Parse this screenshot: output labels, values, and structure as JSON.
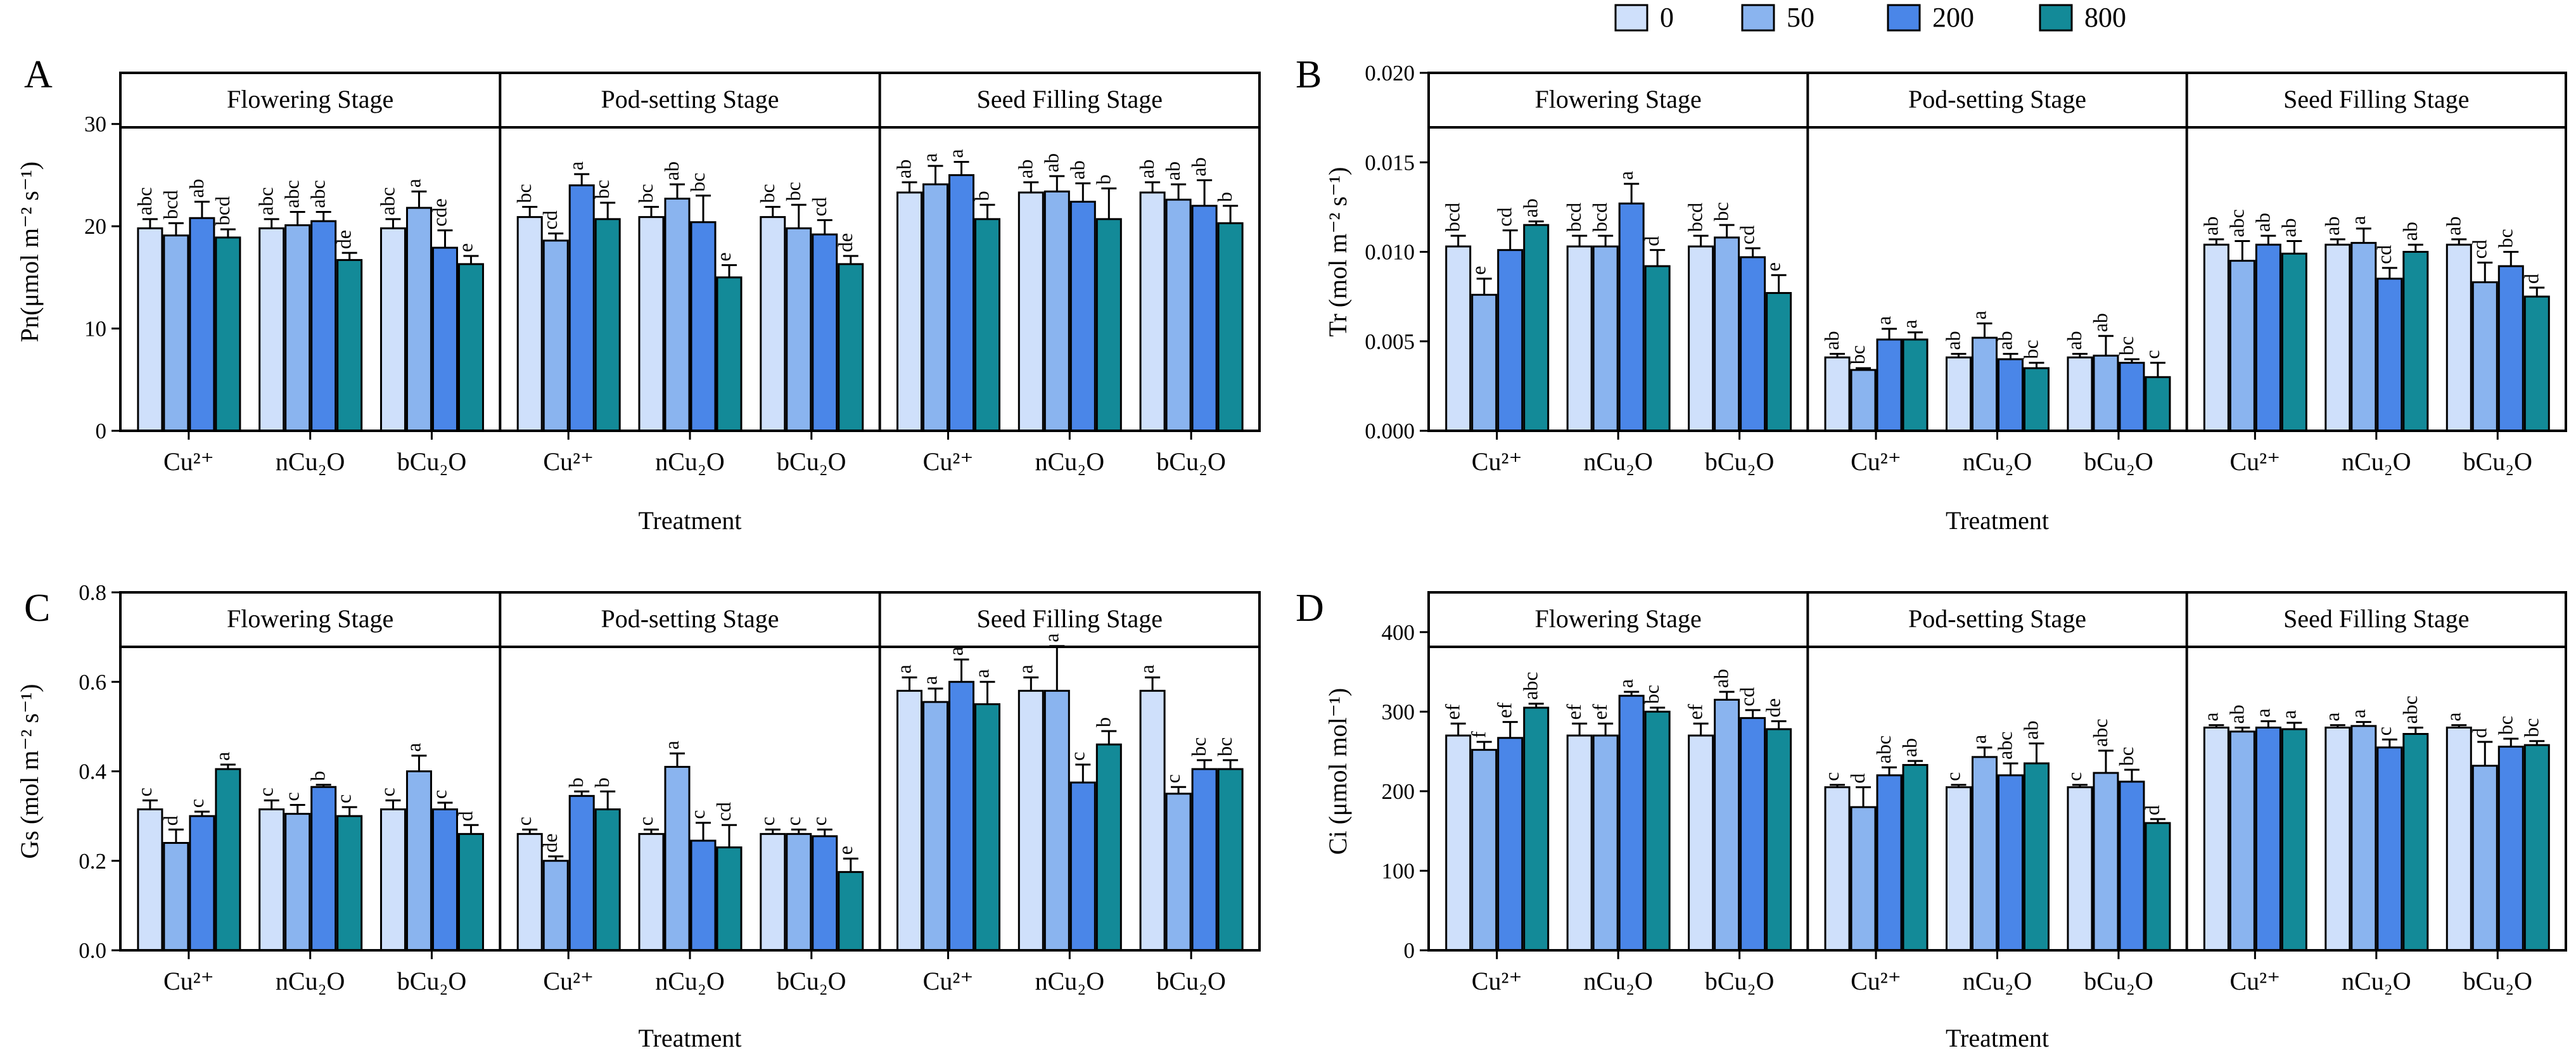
{
  "colors": {
    "c0": "#cfe0fb",
    "c50": "#8ab4ef",
    "c200": "#4a86e8",
    "c800": "#138a98",
    "line": "#000000"
  },
  "legend": {
    "items": [
      {
        "label": "0"
      },
      {
        "label": "50"
      },
      {
        "label": "200"
      },
      {
        "label": "800"
      }
    ]
  },
  "chart_data": [
    {
      "type": "bar",
      "panel": "A",
      "ylabel": "Pn(μmol m⁻² s⁻¹)",
      "xlabel": "Treatment",
      "ylim": [
        0,
        35
      ],
      "yticks": [
        0,
        10,
        20,
        30
      ],
      "tick_decimals": 0,
      "stages": [
        "Flowering Stage",
        "Pod-setting Stage",
        "Seed Filling Stage"
      ],
      "treatments": [
        "Cu²⁺",
        "nCu₂O",
        "bCu₂O"
      ],
      "series": [
        "0",
        "50",
        "200",
        "800"
      ],
      "values": [
        [
          [
            19.8,
            19.1,
            20.8,
            18.9
          ],
          [
            19.8,
            20.1,
            20.5,
            16.7
          ],
          [
            19.8,
            21.8,
            17.9,
            16.3
          ]
        ],
        [
          [
            20.9,
            18.6,
            24.0,
            20.7
          ],
          [
            20.9,
            22.7,
            20.4,
            15.0
          ],
          [
            20.9,
            19.8,
            19.2,
            16.3
          ]
        ],
        [
          [
            23.3,
            24.1,
            25.0,
            20.7
          ],
          [
            23.3,
            23.4,
            22.4,
            20.7
          ],
          [
            23.3,
            22.6,
            22.0,
            20.3
          ]
        ]
      ],
      "errors": [
        [
          [
            0.9,
            1.2,
            1.6,
            0.8
          ],
          [
            0.9,
            1.3,
            0.9,
            0.7
          ],
          [
            0.9,
            1.6,
            1.7,
            0.8
          ]
        ],
        [
          [
            1.0,
            0.7,
            1.1,
            1.6
          ],
          [
            1.0,
            1.4,
            2.6,
            1.2
          ],
          [
            1.0,
            2.3,
            1.4,
            0.8
          ]
        ],
        [
          [
            1.0,
            1.8,
            1.3,
            1.4
          ],
          [
            1.0,
            1.5,
            1.8,
            3.0
          ],
          [
            1.0,
            1.5,
            2.5,
            1.7
          ]
        ]
      ],
      "letters": [
        [
          [
            "abc",
            "bcd",
            "ab",
            "bcd"
          ],
          [
            "abc",
            "abc",
            "abc",
            "de"
          ],
          [
            "abc",
            "a",
            "cde",
            "e"
          ]
        ],
        [
          [
            "bc",
            "cd",
            "a",
            "bc"
          ],
          [
            "bc",
            "ab",
            "bc",
            "e"
          ],
          [
            "bc",
            "bc",
            "cd",
            "de"
          ]
        ],
        [
          [
            "ab",
            "a",
            "a",
            "b"
          ],
          [
            "ab",
            "ab",
            "ab",
            "b"
          ],
          [
            "ab",
            "ab",
            "ab",
            "b"
          ]
        ]
      ]
    },
    {
      "type": "bar",
      "panel": "B",
      "ylabel": "Tr (mol m⁻² s⁻¹)",
      "xlabel": "Treatment",
      "ylim": [
        0,
        0.02
      ],
      "yticks": [
        0,
        0.005,
        0.01,
        0.015,
        0.02
      ],
      "tick_decimals": 3,
      "stages": [
        "Flowering Stage",
        "Pod-setting Stage",
        "Seed Filling Stage"
      ],
      "treatments": [
        "Cu²⁺",
        "nCu₂O",
        "bCu₂O"
      ],
      "series": [
        "0",
        "50",
        "200",
        "800"
      ],
      "values": [
        [
          [
            0.0103,
            0.0076,
            0.0101,
            0.0115
          ],
          [
            0.0103,
            0.0103,
            0.0127,
            0.0092
          ],
          [
            0.0103,
            0.0108,
            0.0097,
            0.0077
          ]
        ],
        [
          [
            0.0041,
            0.0034,
            0.0051,
            0.0051
          ],
          [
            0.0041,
            0.0052,
            0.004,
            0.0035
          ],
          [
            0.0041,
            0.0042,
            0.0038,
            0.003
          ]
        ],
        [
          [
            0.0104,
            0.0095,
            0.0104,
            0.0099
          ],
          [
            0.0104,
            0.0105,
            0.0085,
            0.01
          ],
          [
            0.0104,
            0.0083,
            0.0092,
            0.0075
          ]
        ]
      ],
      "errors": [
        [
          [
            0.0006,
            0.0009,
            0.0011,
            0.0002
          ],
          [
            0.0006,
            0.0006,
            0.0011,
            0.0009
          ],
          [
            0.0006,
            0.0007,
            0.0005,
            0.001
          ]
        ],
        [
          [
            0.0002,
            0.0001,
            0.0006,
            0.0004
          ],
          [
            0.0002,
            0.0008,
            0.0003,
            0.0003
          ],
          [
            0.0002,
            0.0011,
            0.0002,
            0.0008
          ]
        ],
        [
          [
            0.0003,
            0.0011,
            0.0005,
            0.0007
          ],
          [
            0.0003,
            0.0008,
            0.0006,
            0.0004
          ],
          [
            0.0003,
            0.0011,
            0.0008,
            0.0005
          ]
        ]
      ],
      "letters": [
        [
          [
            "bcd",
            "e",
            "cd",
            "ab"
          ],
          [
            "bcd",
            "bcd",
            "a",
            "d"
          ],
          [
            "bcd",
            "bc",
            "cd",
            "e"
          ]
        ],
        [
          [
            "ab",
            "bc",
            "a",
            "a"
          ],
          [
            "ab",
            "a",
            "ab",
            "bc"
          ],
          [
            "ab",
            "ab",
            "bc",
            "c"
          ]
        ],
        [
          [
            "ab",
            "abc",
            "ab",
            "ab"
          ],
          [
            "ab",
            "a",
            "cd",
            "ab"
          ],
          [
            "ab",
            "cd",
            "bc",
            "d"
          ]
        ]
      ]
    },
    {
      "type": "bar",
      "panel": "C",
      "ylabel": "Gs (mol m⁻² s⁻¹)",
      "xlabel": "Treatment",
      "ylim": [
        0,
        0.8
      ],
      "yticks": [
        0,
        0.2,
        0.4,
        0.6,
        0.8
      ],
      "tick_decimals": 1,
      "stages": [
        "Flowering Stage",
        "Pod-setting Stage",
        "Seed Filling Stage"
      ],
      "treatments": [
        "Cu²⁺",
        "nCu₂O",
        "bCu₂O"
      ],
      "series": [
        "0",
        "50",
        "200",
        "800"
      ],
      "values": [
        [
          [
            0.315,
            0.24,
            0.3,
            0.405
          ],
          [
            0.315,
            0.305,
            0.365,
            0.3
          ],
          [
            0.315,
            0.4,
            0.315,
            0.26
          ]
        ],
        [
          [
            0.26,
            0.2,
            0.345,
            0.315
          ],
          [
            0.26,
            0.41,
            0.245,
            0.23
          ],
          [
            0.26,
            0.26,
            0.255,
            0.175
          ]
        ],
        [
          [
            0.58,
            0.555,
            0.6,
            0.55
          ],
          [
            0.58,
            0.58,
            0.375,
            0.46
          ],
          [
            0.58,
            0.35,
            0.405,
            0.405
          ]
        ]
      ],
      "errors": [
        [
          [
            0.02,
            0.03,
            0.01,
            0.01
          ],
          [
            0.02,
            0.02,
            0.005,
            0.02
          ],
          [
            0.02,
            0.035,
            0.015,
            0.02
          ]
        ],
        [
          [
            0.01,
            0.01,
            0.01,
            0.04
          ],
          [
            0.01,
            0.03,
            0.04,
            0.05
          ],
          [
            0.01,
            0.01,
            0.015,
            0.03
          ]
        ],
        [
          [
            0.03,
            0.03,
            0.05,
            0.05
          ],
          [
            0.03,
            0.1,
            0.04,
            0.03
          ],
          [
            0.03,
            0.015,
            0.02,
            0.02
          ]
        ]
      ],
      "letters": [
        [
          [
            "c",
            "d",
            "c",
            "a"
          ],
          [
            "c",
            "c",
            "b",
            "c"
          ],
          [
            "c",
            "a",
            "c",
            "d"
          ]
        ],
        [
          [
            "c",
            "de",
            "b",
            "b"
          ],
          [
            "c",
            "a",
            "c",
            "cd"
          ],
          [
            "c",
            "c",
            "c",
            "e"
          ]
        ],
        [
          [
            "a",
            "a",
            "a",
            "a"
          ],
          [
            "a",
            "a",
            "c",
            "b"
          ],
          [
            "a",
            "c",
            "bc",
            "bc"
          ]
        ]
      ]
    },
    {
      "type": "bar",
      "panel": "D",
      "ylabel": "Ci (μmol mol⁻¹)",
      "xlabel": "Treatment",
      "ylim": [
        0,
        450
      ],
      "yticks": [
        0,
        100,
        200,
        300,
        400
      ],
      "tick_decimals": 0,
      "stages": [
        "Flowering Stage",
        "Pod-setting Stage",
        "Seed Filling Stage"
      ],
      "treatments": [
        "Cu²⁺",
        "nCu₂O",
        "bCu₂O"
      ],
      "series": [
        "0",
        "50",
        "200",
        "800"
      ],
      "values": [
        [
          [
            270,
            252,
            267,
            305
          ],
          [
            270,
            270,
            320,
            300
          ],
          [
            270,
            315,
            292,
            278
          ]
        ],
        [
          [
            205,
            180,
            220,
            233
          ],
          [
            205,
            243,
            220,
            235
          ],
          [
            205,
            223,
            212,
            160
          ]
        ],
        [
          [
            280,
            275,
            280,
            278
          ],
          [
            280,
            282,
            255,
            272
          ],
          [
            280,
            232,
            256,
            258
          ]
        ]
      ],
      "errors": [
        [
          [
            15,
            10,
            20,
            5
          ],
          [
            15,
            15,
            5,
            5
          ],
          [
            15,
            10,
            10,
            10
          ]
        ],
        [
          [
            3,
            25,
            10,
            5
          ],
          [
            3,
            12,
            15,
            25
          ],
          [
            3,
            28,
            15,
            5
          ]
        ],
        [
          [
            3,
            5,
            8,
            8
          ],
          [
            3,
            5,
            10,
            8
          ],
          [
            3,
            30,
            10,
            5
          ]
        ]
      ],
      "letters": [
        [
          [
            "ef",
            "f",
            "ef",
            "abc"
          ],
          [
            "ef",
            "ef",
            "a",
            "bc"
          ],
          [
            "ef",
            "ab",
            "cd",
            "de"
          ]
        ],
        [
          [
            "c",
            "d",
            "abc",
            "ab"
          ],
          [
            "c",
            "a",
            "abc",
            "ab"
          ],
          [
            "c",
            "abc",
            "bc",
            "d"
          ]
        ],
        [
          [
            "a",
            "ab",
            "a",
            "a"
          ],
          [
            "a",
            "a",
            "c",
            "abc"
          ],
          [
            "a",
            "d",
            "bc",
            "bc"
          ]
        ]
      ]
    }
  ]
}
